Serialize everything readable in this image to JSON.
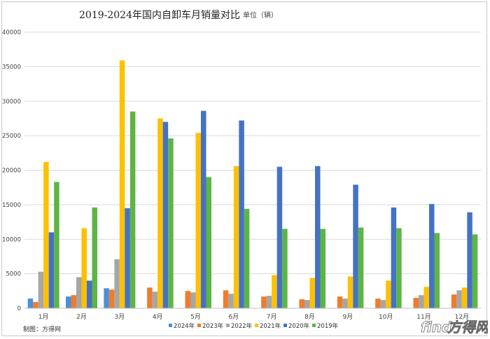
{
  "chart_data": {
    "type": "bar",
    "title": "2019-2024年国内自卸车月销量对比",
    "unit_note": "单位（辆）",
    "categories": [
      "1月",
      "2月",
      "3月",
      "4月",
      "5月",
      "6月",
      "7月",
      "8月",
      "9月",
      "10月",
      "11月",
      "12月"
    ],
    "ylim": [
      0,
      40000
    ],
    "yticks": [
      0,
      5000,
      10000,
      15000,
      20000,
      25000,
      30000,
      35000,
      40000
    ],
    "grid": true,
    "legend_position": "bottom",
    "series": [
      {
        "name": "2024年",
        "color": "#4a90d9",
        "values": [
          1400,
          1700,
          2900,
          null,
          null,
          null,
          null,
          null,
          null,
          null,
          null,
          null
        ]
      },
      {
        "name": "2023年",
        "color": "#f07c2c",
        "values": [
          900,
          1900,
          2700,
          3000,
          2500,
          2600,
          1700,
          1300,
          1700,
          1400,
          1500,
          2000
        ]
      },
      {
        "name": "2022年",
        "color": "#a6a6a6",
        "values": [
          5300,
          4500,
          7100,
          2400,
          2300,
          2100,
          1800,
          1200,
          1400,
          1200,
          1900,
          2600
        ]
      },
      {
        "name": "2021年",
        "color": "#ffc000",
        "values": [
          21200,
          11600,
          35900,
          27500,
          25400,
          20600,
          4800,
          4400,
          4600,
          4000,
          3100,
          3000
        ]
      },
      {
        "name": "2020年",
        "color": "#4472c4",
        "values": [
          11000,
          4000,
          14500,
          27000,
          28600,
          27200,
          20500,
          20600,
          17900,
          14600,
          15100,
          13900
        ]
      },
      {
        "name": "2019年",
        "color": "#5db545",
        "values": [
          18300,
          14600,
          28500,
          24600,
          19000,
          14400,
          11500,
          11500,
          11700,
          11600,
          10900,
          10700
        ]
      }
    ]
  },
  "source_note": "制图：方得网",
  "watermark": {
    "text1": "find",
    "text2": "方得网"
  }
}
